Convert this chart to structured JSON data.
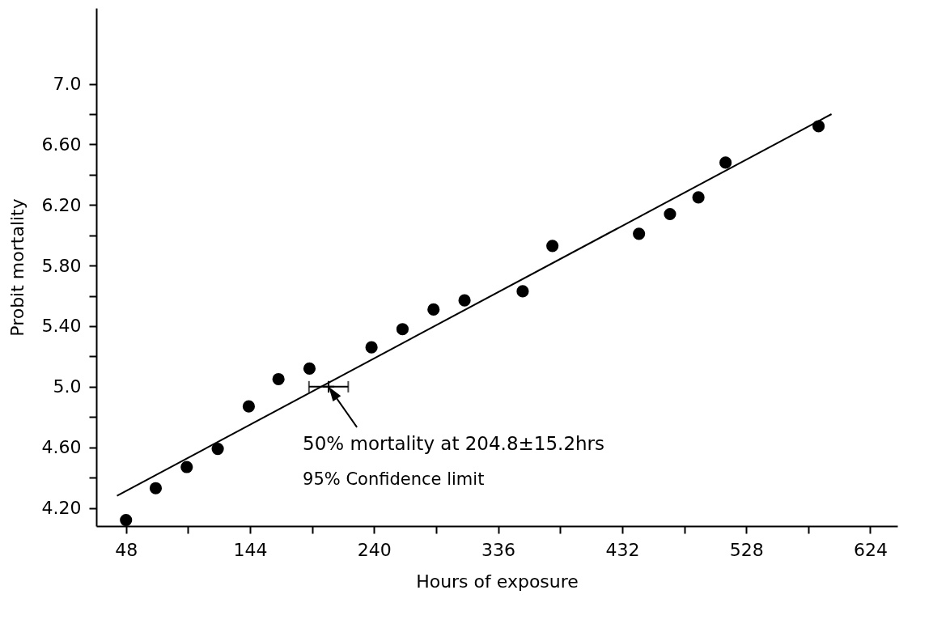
{
  "chart_data": {
    "type": "scatter",
    "xlabel": "Hours of exposure",
    "ylabel": "Probit mortality",
    "xlim": [
      25,
      645
    ],
    "ylim": [
      4.08,
      7.5
    ],
    "xticks": [
      48,
      {
        "value": 96,
        "label": null
      },
      144,
      {
        "value": 192,
        "label": null
      },
      240,
      {
        "value": 288,
        "label": null
      },
      336,
      {
        "value": 384,
        "label": null
      },
      432,
      {
        "value": 480,
        "label": null
      },
      528,
      {
        "value": 576,
        "label": null
      },
      624
    ],
    "yticks": [
      {
        "value": 4.2,
        "label": "4.20"
      },
      {
        "value": 4.4,
        "label": null
      },
      {
        "value": 4.6,
        "label": "4.60"
      },
      {
        "value": 4.8,
        "label": null
      },
      {
        "value": 5.0,
        "label": "5.0"
      },
      {
        "value": 5.2,
        "label": null
      },
      {
        "value": 5.4,
        "label": "5.40"
      },
      {
        "value": 5.6,
        "label": null
      },
      {
        "value": 5.8,
        "label": "5.80"
      },
      {
        "value": 6.0,
        "label": null
      },
      {
        "value": 6.2,
        "label": "6.20"
      },
      {
        "value": 6.4,
        "label": null
      },
      {
        "value": 6.6,
        "label": "6.60"
      },
      {
        "value": 6.8,
        "label": null
      },
      {
        "value": 7.0,
        "label": "7.0"
      }
    ],
    "grid": false,
    "series": [
      {
        "marker": "circle",
        "color": "#000000",
        "x": [
          48,
          71,
          95,
          119,
          143,
          166,
          190,
          238,
          262,
          286,
          310,
          355,
          378,
          445,
          469,
          491,
          512,
          584
        ],
        "values": [
          4.12,
          4.33,
          4.47,
          4.59,
          4.87,
          5.05,
          5.12,
          5.26,
          5.38,
          5.51,
          5.57,
          5.63,
          5.93,
          6.01,
          6.14,
          6.25,
          6.48,
          6.72
        ]
      },
      {
        "type": "line",
        "line_style": "solid",
        "color": "#000000",
        "x": [
          41,
          594
        ],
        "values": [
          4.28,
          6.8
        ]
      },
      {
        "type": "scatter",
        "marker": "cross",
        "color": "#000000",
        "x": [
          204.8
        ],
        "values": [
          5.0
        ],
        "xerrors": [
          15.2
        ]
      }
    ],
    "annotations": [
      {
        "text": "50% mortality at 204.8±15.2hrs",
        "x": 204.8,
        "y": 5.0
      },
      "95% Confidence limit"
    ]
  }
}
